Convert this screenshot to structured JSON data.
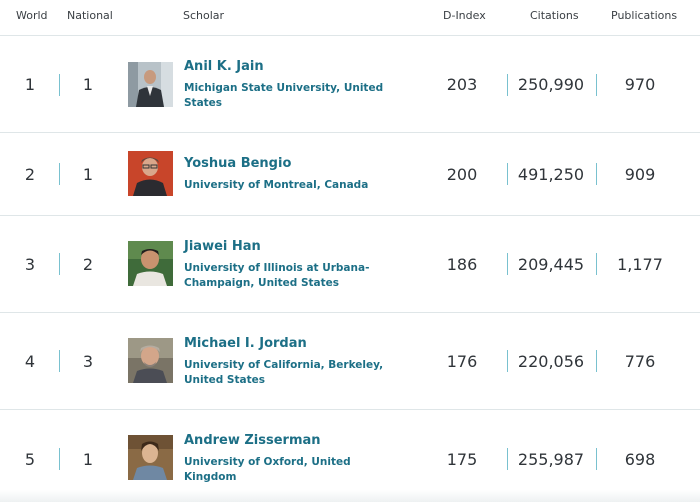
{
  "header": {
    "world": "World",
    "national": "National",
    "scholar": "Scholar",
    "dindex": "D-Index",
    "citations": "Citations",
    "publications": "Publications"
  },
  "rows": [
    {
      "world": "1",
      "national": "1",
      "name": "Anil K. Jain",
      "institution": "Michigan State University, United States",
      "dindex": "203",
      "citations": "250,990",
      "publications": "970"
    },
    {
      "world": "2",
      "national": "1",
      "name": "Yoshua Bengio",
      "institution": "University of Montreal, Canada",
      "dindex": "200",
      "citations": "491,250",
      "publications": "909"
    },
    {
      "world": "3",
      "national": "2",
      "name": "Jiawei Han",
      "institution": "University of Illinois at Urbana-Champaign, United States",
      "dindex": "186",
      "citations": "209,445",
      "publications": "1,177"
    },
    {
      "world": "4",
      "national": "3",
      "name": "Michael I. Jordan",
      "institution": "University of California, Berkeley, United States",
      "dindex": "176",
      "citations": "220,056",
      "publications": "776"
    },
    {
      "world": "5",
      "national": "1",
      "name": "Andrew Zisserman",
      "institution": "University of Oxford, United Kingdom",
      "dindex": "175",
      "citations": "255,987",
      "publications": "698"
    }
  ]
}
